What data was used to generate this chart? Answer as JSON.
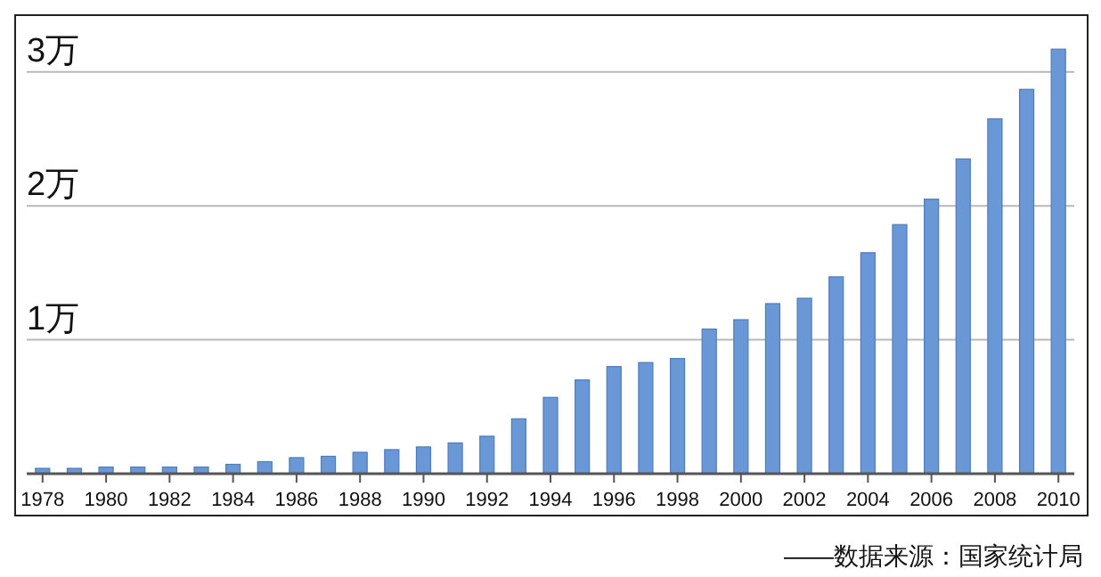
{
  "chart_data": {
    "type": "bar",
    "categories": [
      "1978",
      null,
      "1980",
      null,
      "1982",
      null,
      "1984",
      null,
      "1986",
      null,
      "1988",
      null,
      "1990",
      null,
      "1992",
      null,
      "1994",
      null,
      "1996",
      null,
      "1998",
      null,
      "2000",
      null,
      "2002",
      null,
      "2004",
      null,
      "2006",
      null,
      "2008",
      null,
      "2010"
    ],
    "values": [
      0.04,
      0.04,
      0.05,
      0.05,
      0.05,
      0.05,
      0.07,
      0.09,
      0.12,
      0.13,
      0.16,
      0.18,
      0.2,
      0.23,
      0.28,
      0.41,
      0.57,
      0.7,
      0.8,
      0.83,
      0.86,
      1.08,
      1.15,
      1.27,
      1.31,
      1.47,
      1.65,
      1.86,
      2.05,
      2.35,
      2.65,
      2.87,
      3.17
    ],
    "color": "#6a97d6",
    "ylim": [
      0,
      3.4
    ],
    "yticks": [
      {
        "value": 0,
        "label": null
      },
      {
        "value": 1,
        "label": "1万"
      },
      {
        "value": 2,
        "label": "2万"
      },
      {
        "value": 3,
        "label": "3万"
      }
    ],
    "grid": "y",
    "annotations": [
      "——数据来源：国家统计局"
    ]
  }
}
